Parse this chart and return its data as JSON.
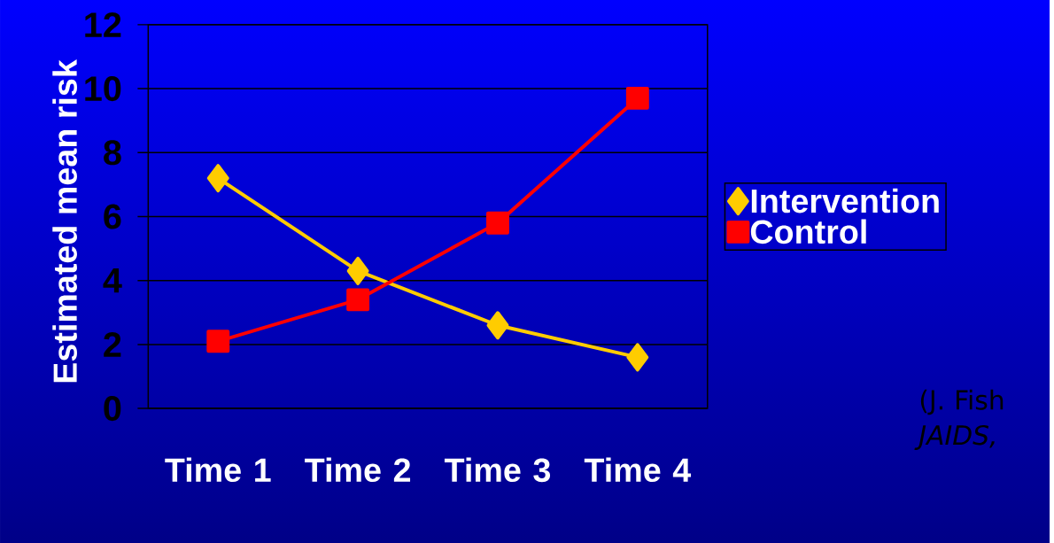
{
  "chart_data": {
    "type": "line",
    "ylabel": "Estimated mean risk",
    "categories": [
      "Time 1",
      "Time 2",
      "Time 3",
      "Time 4"
    ],
    "series": [
      {
        "name": "Intervention",
        "color": "#ffcc00",
        "marker": "diamond",
        "values": [
          7.2,
          4.3,
          2.6,
          1.6
        ]
      },
      {
        "name": "Control",
        "color": "#ff0000",
        "marker": "square",
        "values": [
          2.1,
          3.4,
          5.8,
          9.7
        ]
      }
    ],
    "ylim": [
      0,
      12
    ],
    "yticks": [
      0,
      2,
      4,
      6,
      8,
      10,
      12
    ],
    "grid": "y",
    "legend": "right",
    "annotations": [
      "(J. Fish *JAIDS,*"
    ]
  }
}
